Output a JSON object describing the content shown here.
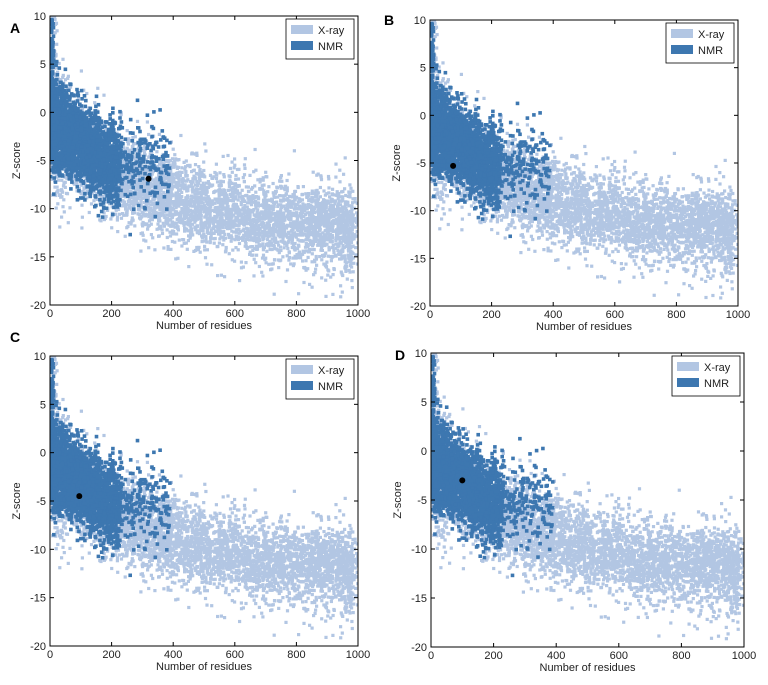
{
  "figure": {
    "panels": [
      {
        "letter": "A"
      },
      {
        "letter": "B"
      },
      {
        "letter": "C"
      },
      {
        "letter": "D"
      }
    ]
  },
  "colors": {
    "xray": "#b2c6e3",
    "nmr": "#3d77b0",
    "marker": "#000000"
  },
  "chart_data": [
    {
      "type": "scatter",
      "panel": "A",
      "xlabel": "Number of residues",
      "ylabel": "Z-score",
      "xlim": [
        0,
        1000
      ],
      "ylim": [
        -20,
        10
      ],
      "xticks": [
        0,
        200,
        400,
        600,
        800,
        1000
      ],
      "yticks": [
        10,
        5,
        0,
        -5,
        -10,
        -15,
        -20
      ],
      "grid": false,
      "legend_position": "top-right",
      "series": [
        {
          "name": "X-ray",
          "kind": "dense-point-cloud"
        },
        {
          "name": "NMR",
          "kind": "dense-point-cloud"
        }
      ],
      "highlight_point": {
        "x": 320,
        "y": -6.9
      }
    },
    {
      "type": "scatter",
      "panel": "B",
      "xlabel": "Number of residues",
      "ylabel": "Z-score",
      "xlim": [
        0,
        1000
      ],
      "ylim": [
        -20,
        10
      ],
      "xticks": [
        0,
        200,
        400,
        600,
        800,
        1000
      ],
      "yticks": [
        10,
        5,
        0,
        -5,
        -10,
        -15,
        -20
      ],
      "grid": false,
      "legend_position": "top-right",
      "series": [
        {
          "name": "X-ray",
          "kind": "dense-point-cloud"
        },
        {
          "name": "NMR",
          "kind": "dense-point-cloud"
        }
      ],
      "highlight_point": {
        "x": 75,
        "y": -5.3
      }
    },
    {
      "type": "scatter",
      "panel": "C",
      "xlabel": "Number of residues",
      "ylabel": "Z-score",
      "xlim": [
        0,
        1000
      ],
      "ylim": [
        -20,
        10
      ],
      "xticks": [
        0,
        200,
        400,
        600,
        800,
        1000
      ],
      "yticks": [
        10,
        5,
        0,
        -5,
        -10,
        -15,
        -20
      ],
      "grid": false,
      "legend_position": "top-right",
      "series": [
        {
          "name": "X-ray",
          "kind": "dense-point-cloud"
        },
        {
          "name": "NMR",
          "kind": "dense-point-cloud"
        }
      ],
      "highlight_point": {
        "x": 95,
        "y": -4.5
      }
    },
    {
      "type": "scatter",
      "panel": "D",
      "xlabel": "Number of residues",
      "ylabel": "Z-score",
      "xlim": [
        0,
        1000
      ],
      "ylim": [
        -20,
        10
      ],
      "xticks": [
        0,
        200,
        400,
        600,
        800,
        1000
      ],
      "yticks": [
        10,
        5,
        0,
        -5,
        -10,
        -15,
        -20
      ],
      "grid": false,
      "legend_position": "top-right",
      "series": [
        {
          "name": "X-ray",
          "kind": "dense-point-cloud"
        },
        {
          "name": "NMR",
          "kind": "dense-point-cloud"
        }
      ],
      "highlight_point": {
        "x": 100,
        "y": -3.0
      }
    }
  ]
}
